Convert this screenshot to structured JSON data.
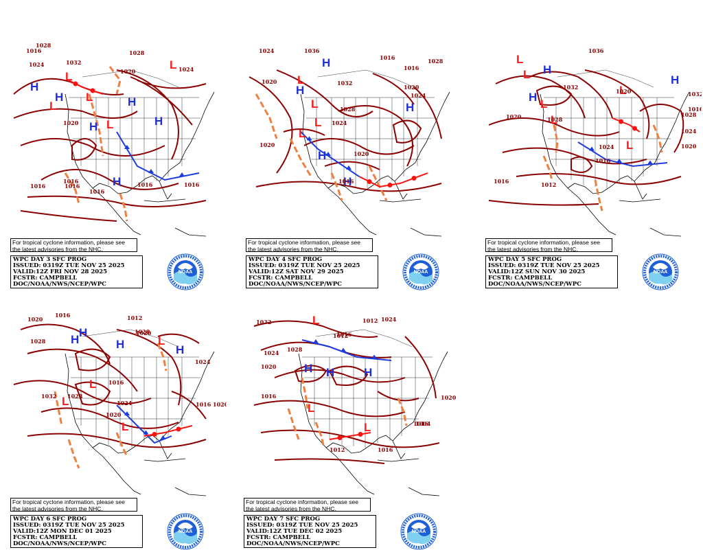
{
  "colors": {
    "isobar": "#8b0000",
    "high": "#1e2fd8",
    "low": "#ff1a1a",
    "trough": "#f08040",
    "cold_front": "#1d3ce0",
    "warm_front": "#ff1010",
    "noaa_blue": "#1e5fd8"
  },
  "panels": [
    {
      "tc_notice": [
        "For tropical cyclone information, please see",
        "the latest advisories from the NHC."
      ],
      "title": "WPC DAY 3 SFC PROG",
      "issued": "ISSUED: 0319Z TUE NOV 25 2025",
      "valid": "VALID:12Z FRI NOV 28 2025",
      "fcstr": "FCSTR: CAMPBELL",
      "org": "DOC/NOAA/NWS/NCEP/WPC",
      "logo_text": "NOAA",
      "labels": [
        "1016",
        "1028",
        "1024",
        "1020",
        "1016",
        "1016",
        "1016",
        "1024",
        "1028",
        "1032",
        "1016",
        "1016",
        "1016",
        "1020"
      ]
    },
    {
      "tc_notice": [
        "For tropical cyclone information, please see",
        "the latest advisories from the NHC."
      ],
      "title": "WPC DAY 4 SFC PROG",
      "issued": "ISSUED: 0319Z TUE NOV 25 2025",
      "valid": "VALID:12Z SAT NOV 29 2025",
      "fcstr": "FCSTR: CAMPBELL",
      "org": "DOC/NOAA/NWS/NCEP/WPC",
      "logo_text": "NOAA",
      "labels": [
        "1024",
        "1020",
        "1036",
        "1032",
        "1028",
        "1024",
        "1020",
        "1016",
        "1020",
        "1016",
        "1024",
        "1020",
        "1016",
        "1028"
      ]
    },
    {
      "tc_notice": [
        "For tropical cyclone information, please see",
        "the latest advisories from the NHC."
      ],
      "title": "WPC DAY 5 SFC PROG",
      "issued": "ISSUED: 0319Z TUE NOV 25 2025",
      "valid": "VALID:12Z SUN NOV 30 2025",
      "fcstr": "FCSTR: CAMPBELL",
      "org": "DOC/NOAA/NWS/NCEP/WPC",
      "logo_text": "NOAA",
      "labels": [
        "1016",
        "1036",
        "1032",
        "1028",
        "1024",
        "1020",
        "1032",
        "1028",
        "1024",
        "1020",
        "1016",
        "1012",
        "1020",
        "1016"
      ]
    },
    {
      "tc_notice": [
        "For tropical cyclone information, please see",
        "the latest advisories from the NHC."
      ],
      "title": "WPC DAY 6 SFC PROG",
      "issued": "ISSUED: 0319Z TUE NOV 25 2025",
      "valid": "VALID:12Z MON DEC 01 2025",
      "fcstr": "FCSTR: CAMPBELL",
      "org": "DOC/NOAA/NWS/NCEP/WPC",
      "logo_text": "NOAA",
      "labels": [
        "1020",
        "1016",
        "1028",
        "1012",
        "1020",
        "1028",
        "1024",
        "1016",
        "1032",
        "1028",
        "1024",
        "1020",
        "1016",
        "1020"
      ]
    },
    {
      "tc_notice": [
        "For tropical cyclone information, please see",
        "the latest advisories from the NHC."
      ],
      "title": "WPC DAY 7 SFC PROG",
      "issued": "ISSUED: 0319Z TUE NOV 25 2025",
      "valid": "VALID:12Z TUE DEC 02 2025",
      "fcstr": "FCSTR: CAMPBELL",
      "org": "DOC/NOAA/NWS/NCEP/WPC",
      "logo_text": "NOAA",
      "labels": [
        "1032",
        "1028",
        "1024",
        "1020",
        "1016",
        "1012",
        "1016",
        "1012",
        "1024",
        "1016",
        "1020",
        "1012",
        "1016",
        "1004"
      ]
    }
  ]
}
